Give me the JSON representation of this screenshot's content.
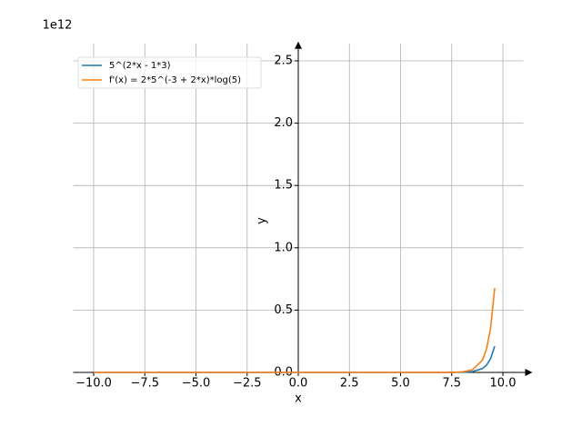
{
  "chart_data": {
    "type": "line",
    "offset_label": "1e12",
    "xlabel": "x",
    "ylabel": "y",
    "x": [
      -10,
      -5,
      0,
      5,
      7,
      7.5,
      8,
      8.5,
      9,
      9.2,
      9.4,
      9.6
    ],
    "series": [
      {
        "name": "5^(2*x - 1*3)",
        "color": "#1f77b4",
        "values": [
          0,
          0,
          0,
          0,
          0,
          0.0002,
          0.0012,
          0.0061,
          0.0305,
          0.0581,
          0.1106,
          0.2105
        ]
      },
      {
        "name": "f'(x) = 2*5^(-3 + 2*x)*log(5)",
        "color": "#ff7f0e",
        "values": [
          0,
          0,
          0,
          0,
          0.0002,
          0.0008,
          0.0039,
          0.0196,
          0.0982,
          0.187,
          0.356,
          0.6776
        ]
      }
    ],
    "xlim": [
      -11,
      11
    ],
    "ylim": [
      0,
      2.64
    ],
    "xticks": [
      {
        "value": -10,
        "label": "−10.0"
      },
      {
        "value": -7.5,
        "label": "−7.5"
      },
      {
        "value": -5,
        "label": "−5.0"
      },
      {
        "value": -2.5,
        "label": "−2.5"
      },
      {
        "value": 0,
        "label": "0.0"
      },
      2.5,
      {
        "value": 5,
        "label": "5.0"
      },
      7.5,
      {
        "value": 10,
        "label": "10.0"
      }
    ],
    "yticks": [
      {
        "value": 0,
        "label": "0.0"
      },
      0.5,
      {
        "value": 1,
        "label": "1.0"
      },
      1.5,
      {
        "value": 2,
        "label": "2.0"
      },
      2.5
    ],
    "grid": true,
    "legend": "upper left"
  }
}
